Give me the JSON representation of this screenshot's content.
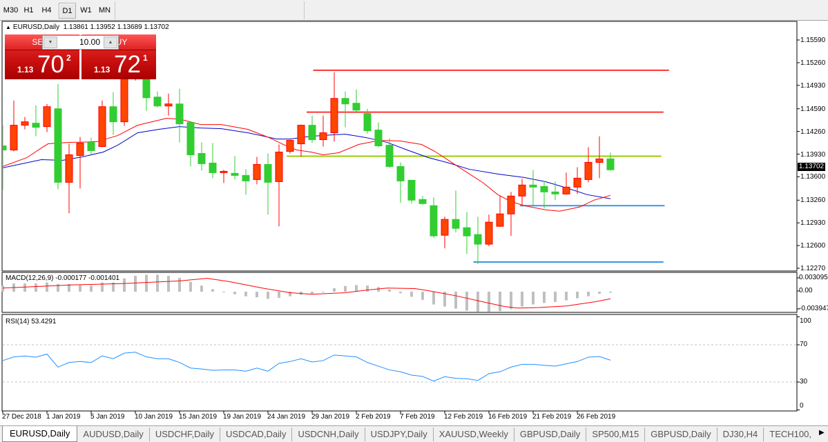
{
  "toolbar": {
    "timeframes": [
      "M30",
      "H1",
      "H4",
      "D1",
      "W1",
      "MN"
    ],
    "active": "D1"
  },
  "chart": {
    "symbol_title": "EURUSD,Daily",
    "ohlc_text": "1.13861 1.13952 1.13689 1.13702"
  },
  "trade_panel": {
    "sell_label": "SELL",
    "buy_label": "BUY",
    "lot": "10.00",
    "sell_price": {
      "prefix": "1.13",
      "big": "70",
      "sup": "2"
    },
    "buy_price": {
      "prefix": "1.13",
      "big": "72",
      "sup": "1"
    }
  },
  "price_axis": {
    "ticks": [
      "1.15590",
      "1.15260",
      "1.14930",
      "1.14590",
      "1.14260",
      "1.13930",
      "1.13600",
      "1.13260",
      "1.12930",
      "1.12600",
      "1.12270"
    ],
    "current": "1.13702"
  },
  "macd": {
    "label": "MACD(12,26,9) -0.000177 -0.001401",
    "ticks": [
      "0.003095",
      "0.00",
      "-0.003947"
    ]
  },
  "rsi": {
    "label": "RSI(14) 53.4291",
    "ticks": [
      "100",
      "70",
      "30",
      "0"
    ]
  },
  "time_axis": {
    "labels": [
      {
        "label": "27 Dec 2018",
        "bar": 0
      },
      {
        "label": "1 Jan 2019",
        "bar": 4
      },
      {
        "label": "5 Jan 2019",
        "bar": 8
      },
      {
        "label": "10 Jan 2019",
        "bar": 12
      },
      {
        "label": "15 Jan 2019",
        "bar": 16
      },
      {
        "label": "19 Jan 2019",
        "bar": 20
      },
      {
        "label": "24 Jan 2019",
        "bar": 24
      },
      {
        "label": "29 Jan 2019",
        "bar": 28
      },
      {
        "label": "2 Feb 2019",
        "bar": 32
      },
      {
        "label": "7 Feb 2019",
        "bar": 36
      },
      {
        "label": "12 Feb 2019",
        "bar": 40
      },
      {
        "label": "16 Feb 2019",
        "bar": 44
      },
      {
        "label": "21 Feb 2019",
        "bar": 48
      },
      {
        "label": "26 Feb 2019",
        "bar": 52
      }
    ]
  },
  "tabs": [
    "EURUSD,Daily",
    "AUDUSD,Daily",
    "USDCHF,Daily",
    "USDCAD,Daily",
    "USDCNH,Daily",
    "USDJPY,Daily",
    "XAUUSD,Weekly",
    "GBPUSD,Daily",
    "SP500,M15",
    "GBPUSD,Daily",
    "DJ30,H4",
    "TECH100,"
  ],
  "active_tab": "EURUSD,Daily",
  "colors": {
    "bull_body": "#ff4500",
    "bull_edge": "#ff0000",
    "bear_body": "#32cd32",
    "bear_edge": "#32cd32",
    "ma_fast": "#ff0000",
    "ma_slow": "#0000c8",
    "macd_hist": "#c0c0c0",
    "macd_signal": "#ff0000",
    "rsi": "#1e90ff",
    "trade_red": "#d02020"
  },
  "chart_data": {
    "type": "candlestick",
    "ylim": [
      1.1227,
      1.1559
    ],
    "candles": [
      [
        1.1405,
        1.1435,
        1.1341,
        1.1399
      ],
      [
        1.1399,
        1.1471,
        1.1397,
        1.1435
      ],
      [
        1.1435,
        1.1447,
        1.1429,
        1.144
      ],
      [
        1.1438,
        1.1464,
        1.1419,
        1.1432
      ],
      [
        1.1433,
        1.1466,
        1.1425,
        1.1462
      ],
      [
        1.1459,
        1.1495,
        1.1342,
        1.1352
      ],
      [
        1.1352,
        1.1408,
        1.1307,
        1.1392
      ],
      [
        1.1391,
        1.1418,
        1.1343,
        1.1409
      ],
      [
        1.141,
        1.1417,
        1.1392,
        1.1398
      ],
      [
        1.1404,
        1.1471,
        1.1403,
        1.1462
      ],
      [
        1.1462,
        1.1483,
        1.1421,
        1.144
      ],
      [
        1.144,
        1.1512,
        1.1434,
        1.1509
      ],
      [
        1.1505,
        1.153,
        1.15,
        1.1522
      ],
      [
        1.1507,
        1.1517,
        1.1456,
        1.1475
      ],
      [
        1.1476,
        1.1484,
        1.1461,
        1.1463
      ],
      [
        1.1463,
        1.1481,
        1.1449,
        1.1466
      ],
      [
        1.1466,
        1.1488,
        1.141,
        1.1437
      ],
      [
        1.1439,
        1.1439,
        1.1375,
        1.1392
      ],
      [
        1.1394,
        1.141,
        1.1369,
        1.1379
      ],
      [
        1.138,
        1.1409,
        1.1358,
        1.1366
      ],
      [
        1.1366,
        1.137,
        1.1351,
        1.1368
      ],
      [
        1.1365,
        1.139,
        1.1356,
        1.1362
      ],
      [
        1.1362,
        1.1371,
        1.1334,
        1.1354
      ],
      [
        1.1356,
        1.1389,
        1.1349,
        1.1378
      ],
      [
        1.1378,
        1.1394,
        1.1305,
        1.1352
      ],
      [
        1.1353,
        1.1407,
        1.1288,
        1.1396
      ],
      [
        1.1397,
        1.1414,
        1.1394,
        1.1413
      ],
      [
        1.1408,
        1.1436,
        1.1389,
        1.1435
      ],
      [
        1.1435,
        1.1449,
        1.1409,
        1.1414
      ],
      [
        1.1414,
        1.1449,
        1.1404,
        1.1424
      ],
      [
        1.1424,
        1.1512,
        1.1411,
        1.1474
      ],
      [
        1.1474,
        1.1484,
        1.1432,
        1.1466
      ],
      [
        1.1467,
        1.1487,
        1.1454,
        1.1457
      ],
      [
        1.1452,
        1.1459,
        1.1423,
        1.1427
      ],
      [
        1.1428,
        1.1439,
        1.1403,
        1.1405
      ],
      [
        1.1406,
        1.1416,
        1.1373,
        1.1375
      ],
      [
        1.1375,
        1.1381,
        1.1322,
        1.1354
      ],
      [
        1.1355,
        1.1355,
        1.1321,
        1.1326
      ],
      [
        1.1327,
        1.1332,
        1.1319,
        1.1321
      ],
      [
        1.1318,
        1.133,
        1.1271,
        1.1274
      ],
      [
        1.1275,
        1.1302,
        1.1256,
        1.1298
      ],
      [
        1.1298,
        1.134,
        1.1279,
        1.1285
      ],
      [
        1.1286,
        1.1309,
        1.1248,
        1.1274
      ],
      [
        1.1276,
        1.1302,
        1.1233,
        1.1262
      ],
      [
        1.1262,
        1.1305,
        1.1259,
        1.1294
      ],
      [
        1.1288,
        1.1333,
        1.1287,
        1.1306
      ],
      [
        1.1306,
        1.1338,
        1.1274,
        1.1332
      ],
      [
        1.1332,
        1.1357,
        1.1318,
        1.1348
      ],
      [
        1.1348,
        1.137,
        1.1319,
        1.1345
      ],
      [
        1.1346,
        1.1354,
        1.1314,
        1.1338
      ],
      [
        1.1338,
        1.1353,
        1.1326,
        1.1335
      ],
      [
        1.1335,
        1.1366,
        1.1334,
        1.1345
      ],
      [
        1.1345,
        1.1374,
        1.1335,
        1.1358
      ],
      [
        1.1356,
        1.1403,
        1.1352,
        1.1381
      ],
      [
        1.1381,
        1.1419,
        1.1358,
        1.1386
      ],
      [
        1.13861,
        1.13952,
        1.13689,
        1.13702
      ]
    ],
    "ma_fast": [
      [
        0,
        1.1375
      ],
      [
        2.2,
        1.1388
      ],
      [
        3.5,
        1.1402
      ],
      [
        4.1,
        1.1408
      ],
      [
        6,
        1.141
      ],
      [
        8.5,
        1.1411
      ],
      [
        10.4,
        1.142
      ],
      [
        12.2,
        1.1435
      ],
      [
        14.8,
        1.1445
      ],
      [
        16,
        1.1444
      ],
      [
        17.9,
        1.1436
      ],
      [
        19.8,
        1.1436
      ],
      [
        22.2,
        1.1429
      ],
      [
        24.1,
        1.1417
      ],
      [
        25.4,
        1.1407
      ],
      [
        26.6,
        1.1399
      ],
      [
        27.9,
        1.1396
      ],
      [
        29,
        1.1392
      ],
      [
        30.4,
        1.1395
      ],
      [
        32.2,
        1.1407
      ],
      [
        34.1,
        1.1413
      ],
      [
        36,
        1.1412
      ],
      [
        37.9,
        1.1407
      ],
      [
        39.1,
        1.1397
      ],
      [
        41,
        1.1377
      ],
      [
        43.5,
        1.1351
      ],
      [
        44.8,
        1.1334
      ],
      [
        46,
        1.1324
      ],
      [
        47.2,
        1.1318
      ],
      [
        49.1,
        1.1312
      ],
      [
        50.4,
        1.131
      ],
      [
        52.2,
        1.1316
      ],
      [
        53.5,
        1.1326
      ],
      [
        55,
        1.1333
      ]
    ],
    "ma_slow": [
      [
        0,
        1.1373
      ],
      [
        3.5,
        1.1385
      ],
      [
        5.4,
        1.1384
      ],
      [
        7.2,
        1.1389
      ],
      [
        9.1,
        1.1396
      ],
      [
        10.4,
        1.1406
      ],
      [
        12.2,
        1.1424
      ],
      [
        14.1,
        1.1429
      ],
      [
        16,
        1.1433
      ],
      [
        17.9,
        1.1431
      ],
      [
        19.8,
        1.143
      ],
      [
        22.2,
        1.1424
      ],
      [
        24.8,
        1.1415
      ],
      [
        26,
        1.1415
      ],
      [
        27.9,
        1.1419
      ],
      [
        29.8,
        1.1421
      ],
      [
        31,
        1.1422
      ],
      [
        32.9,
        1.1417
      ],
      [
        34.8,
        1.141
      ],
      [
        36.6,
        1.1399
      ],
      [
        38.5,
        1.1388
      ],
      [
        40.4,
        1.138
      ],
      [
        42.2,
        1.1371
      ],
      [
        44.8,
        1.1364
      ],
      [
        47.2,
        1.1359
      ],
      [
        49.1,
        1.1353
      ],
      [
        51,
        1.1344
      ],
      [
        52.9,
        1.1334
      ],
      [
        55,
        1.1328
      ]
    ],
    "hlines": [
      {
        "price": 1.1515,
        "color": "#ff3030",
        "from_bar": 28.1,
        "to_bar": 60.3
      },
      {
        "price": 1.1454,
        "color": "#ff3030",
        "from_bar": 27.5,
        "to_bar": 59.8
      },
      {
        "price": 1.139,
        "color": "#9acd00",
        "from_bar": 25.7,
        "to_bar": 59.6
      },
      {
        "price": 1.1318,
        "color": "#3c96e0",
        "from_bar": 46.8,
        "to_bar": 59.9
      },
      {
        "price": 1.1236,
        "color": "#3c96e0",
        "from_bar": 42.6,
        "to_bar": 59.8
      }
    ],
    "macd_hist": [
      0.0012,
      0.0016,
      0.0016,
      0.0016,
      0.0018,
      0.0015,
      0.0015,
      0.0013,
      0.0012,
      0.0018,
      0.0018,
      0.0026,
      0.0031,
      0.0033,
      0.0033,
      0.0031,
      0.0027,
      0.0019,
      0.0012,
      0.0005,
      -0.0001,
      -0.0005,
      -0.0009,
      -0.0011,
      -0.0014,
      -0.0012,
      -0.0009,
      -0.0006,
      -0.0004,
      -0.0001,
      0.0007,
      0.0011,
      0.0013,
      0.0012,
      0.0009,
      0.0004,
      -0.0003,
      -0.001,
      -0.0016,
      -0.0025,
      -0.0029,
      -0.0033,
      -0.0037,
      -0.0039,
      -0.0039,
      -0.0038,
      -0.0034,
      -0.0029,
      -0.0025,
      -0.0022,
      -0.002,
      -0.0017,
      -0.0013,
      -0.0009,
      -0.0004,
      -0.0002
    ],
    "macd_signal": [
      [
        0,
        0.0007
      ],
      [
        6,
        0.0013
      ],
      [
        11,
        0.0016
      ],
      [
        16,
        0.0021
      ],
      [
        18.5,
        0.0026
      ],
      [
        20.4,
        0.002
      ],
      [
        23.5,
        0.0007
      ],
      [
        26,
        -0.0002
      ],
      [
        28,
        -0.0005
      ],
      [
        31,
        -0.0002
      ],
      [
        32.9,
        0.0003
      ],
      [
        34.8,
        0.0007
      ],
      [
        37.3,
        0.0006
      ],
      [
        38.5,
        0.0002
      ],
      [
        41,
        -0.0008
      ],
      [
        43.5,
        -0.002
      ],
      [
        45.4,
        -0.0029
      ],
      [
        46.6,
        -0.0032
      ],
      [
        48.5,
        -0.0031
      ],
      [
        51,
        -0.0028
      ],
      [
        53.5,
        -0.002
      ],
      [
        55,
        -0.0014
      ]
    ],
    "rsi": [
      53,
      57,
      58,
      56.7,
      60,
      46,
      51,
      52,
      51,
      58,
      55,
      61,
      62,
      57,
      55,
      55,
      51,
      45,
      44,
      42.6,
      43,
      43,
      41.6,
      45,
      41.6,
      50,
      52,
      55,
      51.5,
      53,
      59,
      58,
      57,
      51,
      47,
      43,
      41,
      37.4,
      36,
      31,
      35.7,
      34,
      33.5,
      31.7,
      39,
      41,
      46,
      49,
      49,
      48,
      47,
      49.5,
      52,
      56.7,
      57.4,
      53.4
    ],
    "rsi_levels": [
      70,
      30
    ]
  }
}
